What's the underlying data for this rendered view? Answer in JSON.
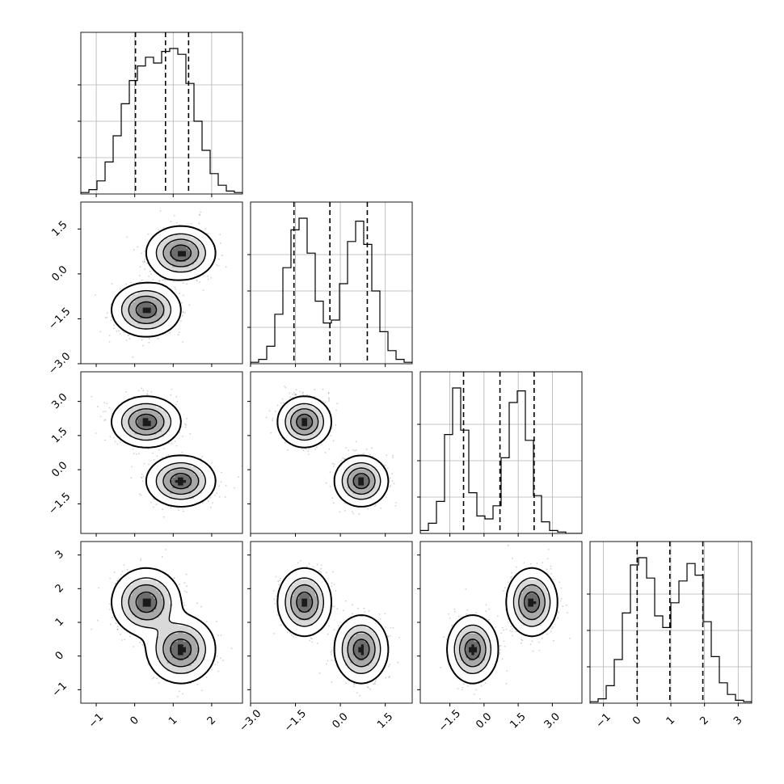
{
  "chart_data": {
    "type": "corner",
    "title": "",
    "grid": true,
    "colors": {
      "line": "#000000",
      "grid": "#b0b0b0",
      "points": "#777777",
      "background": "#ffffff"
    },
    "params": [
      {
        "range": [
          -1.4,
          2.8
        ],
        "ticks": [
          -1,
          0,
          1,
          2
        ],
        "tick_labels": [
          "−1",
          "0",
          "1",
          "2"
        ],
        "quantiles": [
          0.02,
          0.8,
          1.4
        ]
      },
      {
        "range": [
          -3.0,
          2.4
        ],
        "ticks": [
          -3.0,
          -1.5,
          0.0,
          1.5
        ],
        "tick_labels": [
          "−3.0",
          "−1.5",
          "0.0",
          "1.5"
        ],
        "quantiles": [
          -1.55,
          -0.35,
          0.9
        ]
      },
      {
        "range": [
          -2.8,
          4.3
        ],
        "ticks": [
          -1.5,
          0.0,
          1.5,
          3.0
        ],
        "tick_labels": [
          "−1.5",
          "0.0",
          "1.5",
          "3.0"
        ],
        "quantiles": [
          -0.9,
          0.7,
          2.2
        ]
      },
      {
        "range": [
          -1.4,
          3.4
        ],
        "ticks": [
          -1,
          0,
          1,
          2,
          3
        ],
        "tick_labels": [
          "−1",
          "0",
          "1",
          "2",
          "3"
        ],
        "quantiles": [
          0.0,
          0.97,
          1.95
        ]
      }
    ],
    "modes": [
      {
        "weight": 0.5,
        "mean": [
          0.3,
          -1.2,
          2.1,
          1.6
        ],
        "sigma": [
          0.4,
          0.4,
          0.5,
          0.45
        ]
      },
      {
        "weight": 0.5,
        "mean": [
          1.2,
          0.7,
          -0.5,
          0.2
        ],
        "sigma": [
          0.4,
          0.4,
          0.5,
          0.45
        ]
      }
    ],
    "histograms": [
      {
        "bins": 20,
        "counts": [
          1,
          3,
          9,
          22,
          40,
          62,
          78,
          88,
          94,
          90,
          98,
          100,
          96,
          76,
          50,
          30,
          14,
          6,
          2,
          1
        ]
      },
      {
        "bins": 20,
        "counts": [
          1,
          3,
          12,
          34,
          66,
          92,
          100,
          76,
          43,
          28,
          30,
          55,
          84,
          98,
          82,
          50,
          22,
          9,
          3,
          1
        ]
      },
      {
        "bins": 20,
        "counts": [
          2,
          7,
          22,
          68,
          100,
          71,
          28,
          12,
          10,
          19,
          52,
          90,
          98,
          64,
          26,
          8,
          2,
          1,
          0,
          0
        ]
      },
      {
        "bins": 20,
        "counts": [
          1,
          3,
          12,
          30,
          62,
          95,
          100,
          86,
          60,
          52,
          69,
          84,
          96,
          88,
          56,
          32,
          14,
          6,
          2,
          1
        ]
      }
    ]
  }
}
